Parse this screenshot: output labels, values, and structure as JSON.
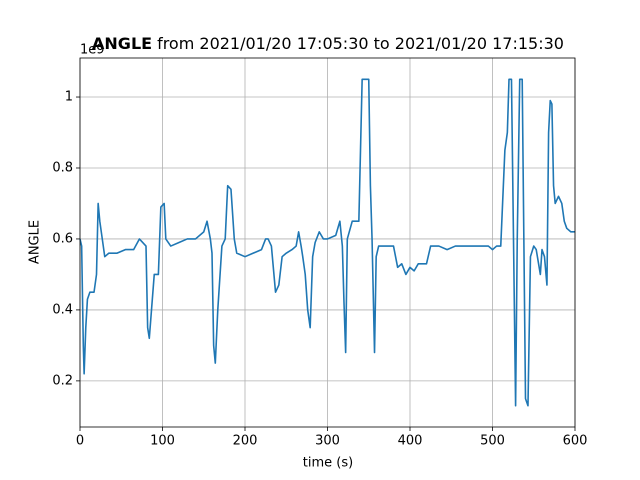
{
  "chart_data": {
    "type": "line",
    "title": {
      "variable": "ANGLE",
      "range": "from 2021/01/20 17:05:30 to 2021/01/20 17:15:30"
    },
    "x_label": "time (s)",
    "y_label": "ANGLE",
    "y_offset_label": "1e9",
    "xlim": [
      0,
      600
    ],
    "xticks": [
      0,
      100,
      200,
      300,
      400,
      500,
      600
    ],
    "ylim": [
      0.07,
      1.11
    ],
    "yticks": [
      0.2,
      0.4,
      0.6,
      0.8,
      1.0
    ],
    "grid": true,
    "series": [
      {
        "name": "ANGLE",
        "color": "#1f77b4",
        "x": [
          0,
          2,
          4,
          5,
          7,
          9,
          12,
          17,
          20,
          22,
          24,
          27,
          30,
          35,
          45,
          55,
          65,
          72,
          80,
          82,
          84,
          86,
          90,
          95,
          98,
          102,
          104,
          110,
          120,
          130,
          140,
          150,
          154,
          158,
          160,
          162,
          164,
          167,
          172,
          176,
          179,
          183,
          187,
          190,
          200,
          210,
          220,
          225,
          228,
          232,
          237,
          241,
          245,
          250,
          257,
          262,
          265,
          268,
          270,
          273,
          276,
          279,
          282,
          285,
          290,
          295,
          300,
          310,
          315,
          318,
          320,
          322,
          324,
          330,
          338,
          340,
          342,
          350,
          352,
          354,
          357,
          359,
          362,
          370,
          380,
          385,
          390,
          395,
          400,
          405,
          410,
          420,
          425,
          435,
          445,
          455,
          465,
          475,
          485,
          495,
          500,
          505,
          510,
          515,
          518,
          520,
          523,
          526,
          528,
          530,
          533,
          536,
          538,
          540,
          543,
          546,
          550,
          553,
          558,
          560,
          563,
          566,
          568,
          570,
          572,
          574,
          576,
          580,
          584,
          587,
          590,
          595,
          600
        ],
        "values": [
          0.6,
          0.58,
          0.3,
          0.22,
          0.35,
          0.43,
          0.45,
          0.45,
          0.5,
          0.7,
          0.65,
          0.6,
          0.55,
          0.56,
          0.56,
          0.57,
          0.57,
          0.6,
          0.58,
          0.35,
          0.32,
          0.38,
          0.5,
          0.5,
          0.69,
          0.7,
          0.6,
          0.58,
          0.59,
          0.6,
          0.6,
          0.62,
          0.65,
          0.6,
          0.56,
          0.3,
          0.25,
          0.4,
          0.58,
          0.6,
          0.75,
          0.74,
          0.6,
          0.56,
          0.55,
          0.56,
          0.57,
          0.6,
          0.6,
          0.58,
          0.45,
          0.47,
          0.55,
          0.56,
          0.57,
          0.58,
          0.62,
          0.58,
          0.55,
          0.5,
          0.4,
          0.35,
          0.55,
          0.59,
          0.62,
          0.6,
          0.6,
          0.61,
          0.65,
          0.58,
          0.42,
          0.28,
          0.6,
          0.65,
          0.65,
          0.85,
          1.05,
          1.05,
          0.75,
          0.6,
          0.28,
          0.55,
          0.58,
          0.58,
          0.58,
          0.52,
          0.53,
          0.5,
          0.52,
          0.51,
          0.53,
          0.53,
          0.58,
          0.58,
          0.57,
          0.58,
          0.58,
          0.58,
          0.58,
          0.58,
          0.57,
          0.58,
          0.58,
          0.85,
          0.9,
          1.05,
          1.05,
          0.5,
          0.13,
          0.6,
          1.05,
          1.05,
          0.6,
          0.15,
          0.13,
          0.55,
          0.58,
          0.57,
          0.5,
          0.57,
          0.55,
          0.47,
          0.9,
          0.99,
          0.98,
          0.75,
          0.7,
          0.72,
          0.7,
          0.65,
          0.63,
          0.62,
          0.62
        ]
      }
    ]
  }
}
